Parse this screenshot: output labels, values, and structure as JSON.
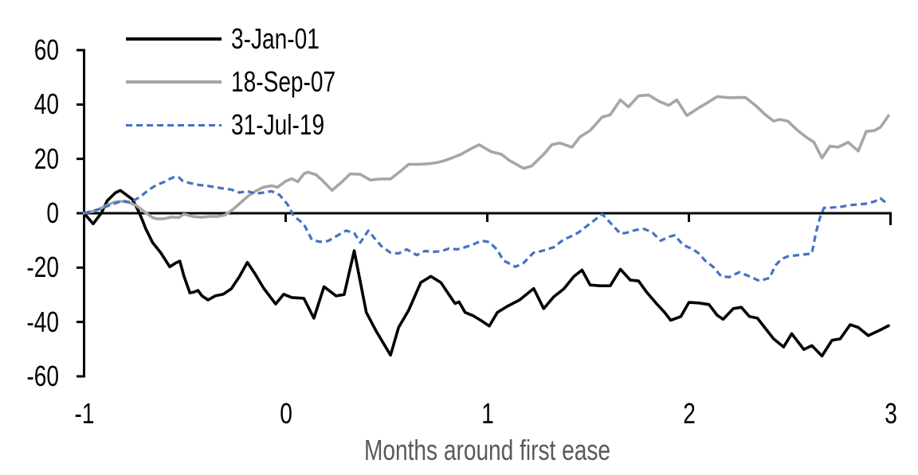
{
  "chart_data": {
    "type": "line",
    "title": "",
    "xlabel": "Months around first ease",
    "ylabel": "",
    "xlim": [
      -1,
      3
    ],
    "ylim": [
      -60,
      60
    ],
    "grid": false,
    "legend_position": "top-left",
    "axis_color": "#000000",
    "xlabel_color": "#595959",
    "x_ticks": [
      -1,
      0,
      1,
      2,
      3
    ],
    "x_tick_labels": [
      "-1",
      "0",
      "1",
      "2",
      "3"
    ],
    "y_ticks": [
      60,
      40,
      20,
      0,
      -20,
      -40,
      -60
    ],
    "y_tick_labels": [
      "60",
      "40",
      "20",
      "0",
      "-20",
      "-40",
      "-60"
    ],
    "series": [
      {
        "name": "3-Jan-01",
        "color": "#000000",
        "dash": "solid",
        "width": 3.6,
        "points": [
          [
            -1,
            0
          ],
          [
            -0.955,
            -3.9
          ],
          [
            -0.915,
            0
          ],
          [
            -0.885,
            4.6
          ],
          [
            -0.845,
            7.5
          ],
          [
            -0.82,
            8.4
          ],
          [
            -0.795,
            7.0
          ],
          [
            -0.76,
            5.1
          ],
          [
            -0.73,
            0.8
          ],
          [
            -0.71,
            -2.7
          ],
          [
            -0.695,
            -5.6
          ],
          [
            -0.66,
            -10.8
          ],
          [
            -0.62,
            -14.5
          ],
          [
            -0.575,
            -19.7
          ],
          [
            -0.545,
            -18.3
          ],
          [
            -0.525,
            -17.6
          ],
          [
            -0.505,
            -23.0
          ],
          [
            -0.475,
            -29.3
          ],
          [
            -0.455,
            -29.0
          ],
          [
            -0.435,
            -28.4
          ],
          [
            -0.415,
            -30.4
          ],
          [
            -0.385,
            -31.9
          ],
          [
            -0.35,
            -30.4
          ],
          [
            -0.31,
            -29.8
          ],
          [
            -0.27,
            -27.8
          ],
          [
            -0.23,
            -23.4
          ],
          [
            -0.19,
            -18.1
          ],
          [
            -0.15,
            -22.5
          ],
          [
            -0.11,
            -27.5
          ],
          [
            -0.05,
            -33.4
          ],
          [
            -0.01,
            -29.8
          ],
          [
            0.03,
            -31.0
          ],
          [
            0.09,
            -31.3
          ],
          [
            0.14,
            -38.6
          ],
          [
            0.19,
            -27.0
          ],
          [
            0.25,
            -30.4
          ],
          [
            0.29,
            -29.9
          ],
          [
            0.34,
            -13.8
          ],
          [
            0.4,
            -36.5
          ],
          [
            0.45,
            -43.5
          ],
          [
            0.52,
            -52.2
          ],
          [
            0.56,
            -42.0
          ],
          [
            0.61,
            -35.7
          ],
          [
            0.67,
            -25.5
          ],
          [
            0.72,
            -23.2
          ],
          [
            0.77,
            -25.5
          ],
          [
            0.81,
            -29.9
          ],
          [
            0.84,
            -33.2
          ],
          [
            0.86,
            -32.6
          ],
          [
            0.89,
            -36.5
          ],
          [
            0.93,
            -37.7
          ],
          [
            0.97,
            -39.5
          ],
          [
            1.01,
            -41.5
          ],
          [
            1.05,
            -36.5
          ],
          [
            1.1,
            -34.2
          ],
          [
            1.16,
            -31.9
          ],
          [
            1.23,
            -27.7
          ],
          [
            1.28,
            -35.1
          ],
          [
            1.33,
            -30.7
          ],
          [
            1.38,
            -27.8
          ],
          [
            1.43,
            -23.2
          ],
          [
            1.47,
            -20.9
          ],
          [
            1.51,
            -26.4
          ],
          [
            1.56,
            -26.7
          ],
          [
            1.61,
            -26.7
          ],
          [
            1.66,
            -20.6
          ],
          [
            1.71,
            -24.6
          ],
          [
            1.75,
            -24.9
          ],
          [
            1.79,
            -29.0
          ],
          [
            1.84,
            -33.3
          ],
          [
            1.88,
            -36.5
          ],
          [
            1.91,
            -39.4
          ],
          [
            1.96,
            -38.0
          ],
          [
            2.0,
            -32.8
          ],
          [
            2.05,
            -33.0
          ],
          [
            2.1,
            -33.6
          ],
          [
            2.14,
            -37.5
          ],
          [
            2.17,
            -39.0
          ],
          [
            2.22,
            -35.1
          ],
          [
            2.26,
            -34.6
          ],
          [
            2.3,
            -38.0
          ],
          [
            2.34,
            -38.6
          ],
          [
            2.38,
            -42.4
          ],
          [
            2.42,
            -46.2
          ],
          [
            2.47,
            -49.2
          ],
          [
            2.51,
            -44.3
          ],
          [
            2.57,
            -50.1
          ],
          [
            2.61,
            -48.7
          ],
          [
            2.66,
            -52.5
          ],
          [
            2.71,
            -46.7
          ],
          [
            2.75,
            -46.2
          ],
          [
            2.8,
            -41.0
          ],
          [
            2.84,
            -42.0
          ],
          [
            2.89,
            -45.0
          ],
          [
            2.95,
            -42.9
          ],
          [
            2.99,
            -41.4
          ]
        ]
      },
      {
        "name": "18-Sep-07",
        "color": "#A6A6A6",
        "dash": "solid",
        "width": 3.6,
        "points": [
          [
            -1,
            0
          ],
          [
            -0.95,
            0.8
          ],
          [
            -0.92,
            1.7
          ],
          [
            -0.885,
            3.0
          ],
          [
            -0.85,
            4.1
          ],
          [
            -0.81,
            4.4
          ],
          [
            -0.775,
            3.9
          ],
          [
            -0.74,
            2.8
          ],
          [
            -0.7,
            0.5
          ],
          [
            -0.66,
            -1.6
          ],
          [
            -0.635,
            -2.1
          ],
          [
            -0.6,
            -2.0
          ],
          [
            -0.565,
            -1.4
          ],
          [
            -0.53,
            -1.6
          ],
          [
            -0.505,
            -0.3
          ],
          [
            -0.46,
            -1.2
          ],
          [
            -0.42,
            -1.5
          ],
          [
            -0.38,
            -1.2
          ],
          [
            -0.34,
            -1.2
          ],
          [
            -0.3,
            -0.6
          ],
          [
            -0.26,
            1.5
          ],
          [
            -0.225,
            3.8
          ],
          [
            -0.19,
            6.1
          ],
          [
            -0.15,
            8.1
          ],
          [
            -0.11,
            9.6
          ],
          [
            -0.07,
            10.1
          ],
          [
            -0.04,
            9.6
          ],
          [
            0.0,
            11.8
          ],
          [
            0.03,
            12.7
          ],
          [
            0.06,
            11.6
          ],
          [
            0.09,
            14.5
          ],
          [
            0.11,
            15.1
          ],
          [
            0.15,
            14.2
          ],
          [
            0.18,
            12.2
          ],
          [
            0.23,
            8.4
          ],
          [
            0.28,
            11.6
          ],
          [
            0.32,
            14.5
          ],
          [
            0.37,
            14.3
          ],
          [
            0.42,
            12.2
          ],
          [
            0.47,
            12.6
          ],
          [
            0.52,
            12.6
          ],
          [
            0.57,
            15.5
          ],
          [
            0.61,
            18.0
          ],
          [
            0.66,
            18.0
          ],
          [
            0.71,
            18.2
          ],
          [
            0.75,
            18.6
          ],
          [
            0.79,
            19.4
          ],
          [
            0.83,
            20.5
          ],
          [
            0.87,
            21.7
          ],
          [
            0.92,
            23.8
          ],
          [
            0.96,
            25.2
          ],
          [
            1.02,
            22.6
          ],
          [
            1.07,
            21.7
          ],
          [
            1.11,
            19.4
          ],
          [
            1.18,
            16.5
          ],
          [
            1.22,
            17.4
          ],
          [
            1.28,
            21.7
          ],
          [
            1.32,
            25.2
          ],
          [
            1.36,
            25.8
          ],
          [
            1.42,
            24.3
          ],
          [
            1.46,
            28.1
          ],
          [
            1.51,
            30.4
          ],
          [
            1.57,
            35.4
          ],
          [
            1.61,
            36.2
          ],
          [
            1.66,
            41.7
          ],
          [
            1.7,
            39.1
          ],
          [
            1.75,
            43.2
          ],
          [
            1.8,
            43.5
          ],
          [
            1.85,
            41.2
          ],
          [
            1.9,
            39.7
          ],
          [
            1.94,
            41.7
          ],
          [
            1.99,
            35.9
          ],
          [
            2.05,
            38.8
          ],
          [
            2.09,
            40.6
          ],
          [
            2.14,
            42.9
          ],
          [
            2.2,
            42.5
          ],
          [
            2.28,
            42.6
          ],
          [
            2.33,
            39.7
          ],
          [
            2.38,
            36.2
          ],
          [
            2.42,
            33.9
          ],
          [
            2.45,
            34.5
          ],
          [
            2.49,
            33.9
          ],
          [
            2.54,
            30.4
          ],
          [
            2.58,
            28.1
          ],
          [
            2.62,
            26.1
          ],
          [
            2.66,
            20.3
          ],
          [
            2.7,
            24.7
          ],
          [
            2.74,
            24.3
          ],
          [
            2.79,
            26.1
          ],
          [
            2.84,
            22.9
          ],
          [
            2.88,
            30.1
          ],
          [
            2.92,
            30.4
          ],
          [
            2.95,
            31.6
          ],
          [
            2.99,
            35.9
          ]
        ]
      },
      {
        "name": "31-Jul-19",
        "color": "#4472C4",
        "dash": "dashed",
        "width": 3.2,
        "points": [
          [
            -1,
            0
          ],
          [
            -0.96,
            0.8
          ],
          [
            -0.92,
            1.6
          ],
          [
            -0.885,
            2.6
          ],
          [
            -0.85,
            3.5
          ],
          [
            -0.81,
            4.6
          ],
          [
            -0.77,
            4.0
          ],
          [
            -0.72,
            6.1
          ],
          [
            -0.68,
            8.6
          ],
          [
            -0.64,
            10.4
          ],
          [
            -0.6,
            11.6
          ],
          [
            -0.575,
            12.6
          ],
          [
            -0.55,
            13.4
          ],
          [
            -0.53,
            13.2
          ],
          [
            -0.51,
            11.8
          ],
          [
            -0.47,
            11.0
          ],
          [
            -0.43,
            10.4
          ],
          [
            -0.39,
            10.1
          ],
          [
            -0.35,
            9.6
          ],
          [
            -0.31,
            9.1
          ],
          [
            -0.27,
            8.7
          ],
          [
            -0.23,
            7.6
          ],
          [
            -0.19,
            8.1
          ],
          [
            -0.15,
            7.2
          ],
          [
            -0.11,
            7.6
          ],
          [
            -0.07,
            8.1
          ],
          [
            -0.03,
            6.7
          ],
          [
            0.01,
            3.2
          ],
          [
            0.04,
            -1.0
          ],
          [
            0.09,
            -4.0
          ],
          [
            0.13,
            -9.8
          ],
          [
            0.17,
            -10.5
          ],
          [
            0.21,
            -10.2
          ],
          [
            0.25,
            -8.5
          ],
          [
            0.3,
            -6.4
          ],
          [
            0.34,
            -7.3
          ],
          [
            0.37,
            -10.8
          ],
          [
            0.41,
            -6.4
          ],
          [
            0.45,
            -10.0
          ],
          [
            0.48,
            -12.5
          ],
          [
            0.52,
            -14.5
          ],
          [
            0.56,
            -14.8
          ],
          [
            0.6,
            -13.3
          ],
          [
            0.65,
            -15.4
          ],
          [
            0.69,
            -13.9
          ],
          [
            0.73,
            -14.2
          ],
          [
            0.77,
            -14.0
          ],
          [
            0.81,
            -13.0
          ],
          [
            0.85,
            -13.3
          ],
          [
            0.89,
            -12.5
          ],
          [
            0.93,
            -11.5
          ],
          [
            0.97,
            -10.1
          ],
          [
            1.01,
            -10.6
          ],
          [
            1.05,
            -13.5
          ],
          [
            1.08,
            -17.4
          ],
          [
            1.14,
            -19.7
          ],
          [
            1.18,
            -18.3
          ],
          [
            1.23,
            -14.5
          ],
          [
            1.27,
            -13.9
          ],
          [
            1.33,
            -12.5
          ],
          [
            1.38,
            -9.6
          ],
          [
            1.41,
            -8.7
          ],
          [
            1.45,
            -7.2
          ],
          [
            1.51,
            -3.8
          ],
          [
            1.57,
            -0.3
          ],
          [
            1.62,
            -4.3
          ],
          [
            1.66,
            -7.5
          ],
          [
            1.69,
            -7.2
          ],
          [
            1.74,
            -6.1
          ],
          [
            1.78,
            -5.8
          ],
          [
            1.82,
            -7.2
          ],
          [
            1.86,
            -10.1
          ],
          [
            1.9,
            -8.7
          ],
          [
            1.93,
            -8.1
          ],
          [
            1.97,
            -11.6
          ],
          [
            2.02,
            -13.3
          ],
          [
            2.05,
            -14.8
          ],
          [
            2.08,
            -17.4
          ],
          [
            2.12,
            -19.7
          ],
          [
            2.16,
            -23.2
          ],
          [
            2.2,
            -23.5
          ],
          [
            2.25,
            -21.7
          ],
          [
            2.3,
            -23.2
          ],
          [
            2.35,
            -24.9
          ],
          [
            2.4,
            -23.8
          ],
          [
            2.43,
            -19.1
          ],
          [
            2.46,
            -16.8
          ],
          [
            2.49,
            -15.9
          ],
          [
            2.53,
            -15.5
          ],
          [
            2.57,
            -15.2
          ],
          [
            2.61,
            -14.8
          ],
          [
            2.63,
            -7.2
          ],
          [
            2.65,
            -1.7
          ],
          [
            2.67,
            2.0
          ],
          [
            2.71,
            2.1
          ],
          [
            2.75,
            2.3
          ],
          [
            2.79,
            2.9
          ],
          [
            2.83,
            3.2
          ],
          [
            2.88,
            3.5
          ],
          [
            2.92,
            4.3
          ],
          [
            2.95,
            5.5
          ],
          [
            2.97,
            4.3
          ],
          [
            2.99,
            4.1
          ]
        ]
      }
    ]
  }
}
